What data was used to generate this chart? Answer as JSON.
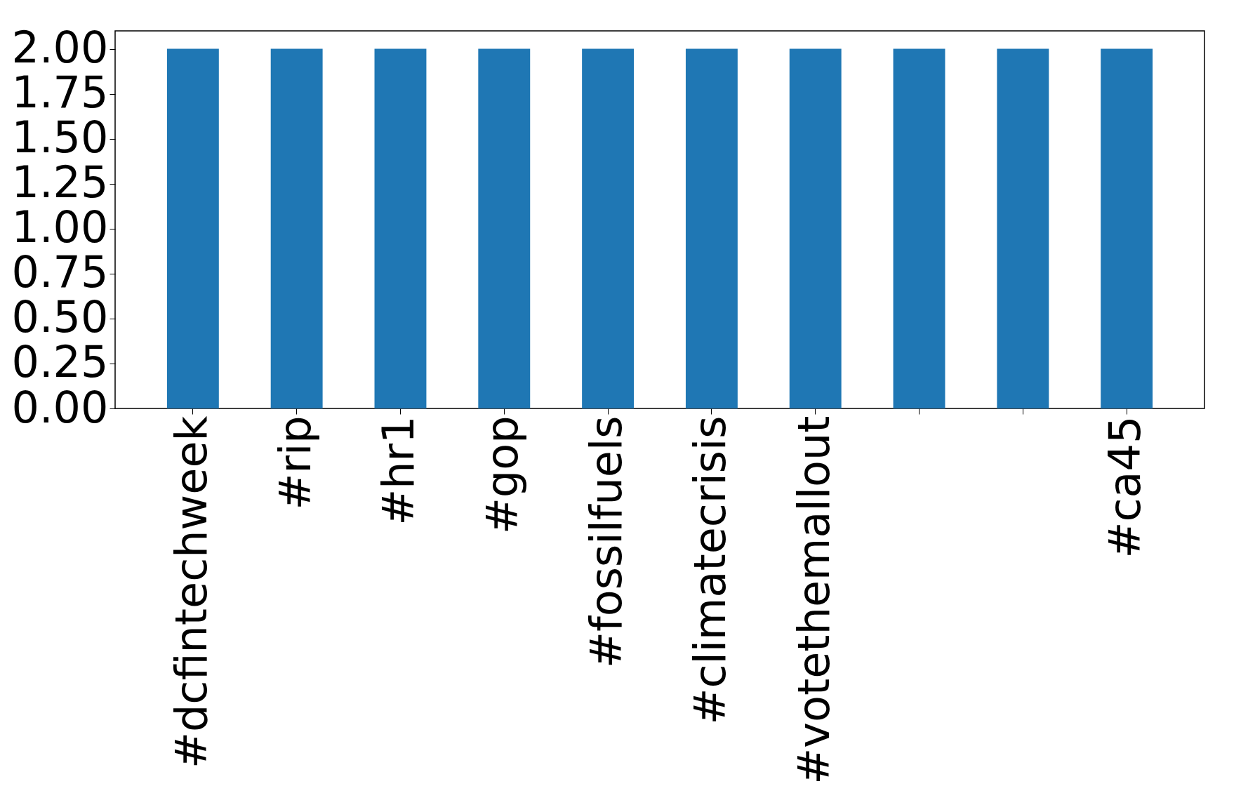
{
  "chart_data": {
    "type": "bar",
    "categories": [
      "#dcfintechweek",
      "#rip",
      "#hr1",
      "#gop",
      "#fossilfuels",
      "#climatecrisis",
      "#votethemallout",
      null,
      null,
      "#ca45"
    ],
    "values": [
      2,
      2,
      2,
      2,
      2,
      2,
      2,
      2,
      2,
      2
    ],
    "color": "#1f77b4",
    "ylim": [
      0,
      2.1
    ],
    "yticks": [
      {
        "value": 0,
        "label": "0.00"
      },
      {
        "value": 0.25,
        "label": "0.25"
      },
      {
        "value": 0.5,
        "label": "0.50"
      },
      {
        "value": 0.75,
        "label": "0.75"
      },
      {
        "value": 1,
        "label": "1.00"
      },
      {
        "value": 1.25,
        "label": "1.25"
      },
      {
        "value": 1.5,
        "label": "1.50"
      },
      {
        "value": 1.75,
        "label": "1.75"
      },
      {
        "value": 2,
        "label": "2.00"
      }
    ],
    "grid": false
  }
}
